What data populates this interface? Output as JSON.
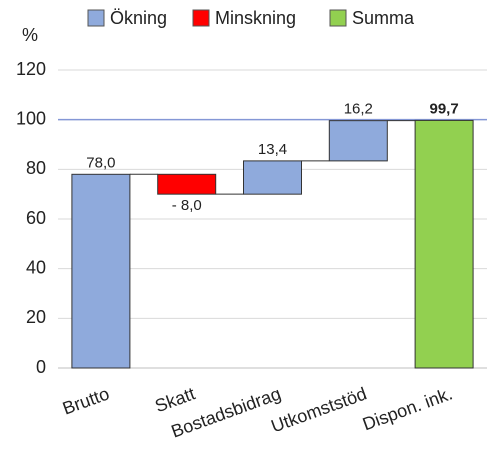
{
  "chart_data": {
    "type": "waterfall",
    "y_label": "%",
    "categories": [
      "Brutto",
      "Skatt",
      "Bostadsbidrag",
      "Utkomststöd",
      "Dispon. ink."
    ],
    "values": [
      78.0,
      -8.0,
      13.4,
      16.2,
      99.7
    ],
    "value_labels": [
      "78,0",
      "- 8,0",
      "13,4",
      "16,2",
      "99,7"
    ],
    "kinds": [
      "increase",
      "decrease",
      "increase",
      "increase",
      "total"
    ],
    "legend": [
      {
        "name": "Ökning",
        "kind": "increase",
        "color": "#8faadc"
      },
      {
        "name": "Minskning",
        "kind": "decrease",
        "color": "#ff0000"
      },
      {
        "name": "Summa",
        "kind": "total",
        "color": "#92d050"
      }
    ],
    "reference_line": 100,
    "reference_color": "#8497d6",
    "ylim": [
      0,
      120
    ],
    "yticks": [
      0,
      20,
      40,
      60,
      80,
      100,
      120
    ],
    "grid": true
  }
}
